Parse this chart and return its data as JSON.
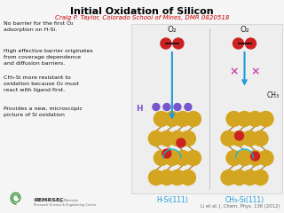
{
  "title": "Initial Oxidation of Silicon",
  "subtitle": "Craig P. Taylor, Colorado School of Mines, DMR 0820518",
  "title_color": "#000000",
  "subtitle_color": "#cc0000",
  "bg_color": "#f5f5f5",
  "bullet_texts": [
    "No barrier for the first O₂\nadsorption on H-Si.",
    "High effective barrier originates\nfrom coverage dependence\nand diffusion barriers.",
    "CH₃-Si more resistant to\noxidation because O₂ must\nreact with ligand first.",
    "Provides a new, microscopic\npicture of Si oxidation"
  ],
  "caption_left": "H-Si(111)",
  "caption_right": "CH₃-Si(111)",
  "caption_color": "#1a9cd8",
  "citation": "Li et al. J. Chem. Phys. 136 (2012)",
  "citation_color": "#666666",
  "gold": "#d4a520",
  "red_atom": "#cc2222",
  "purple": "#7755cc",
  "blue_arrow": "#1a9cd8",
  "pink_x": "#cc44aa"
}
